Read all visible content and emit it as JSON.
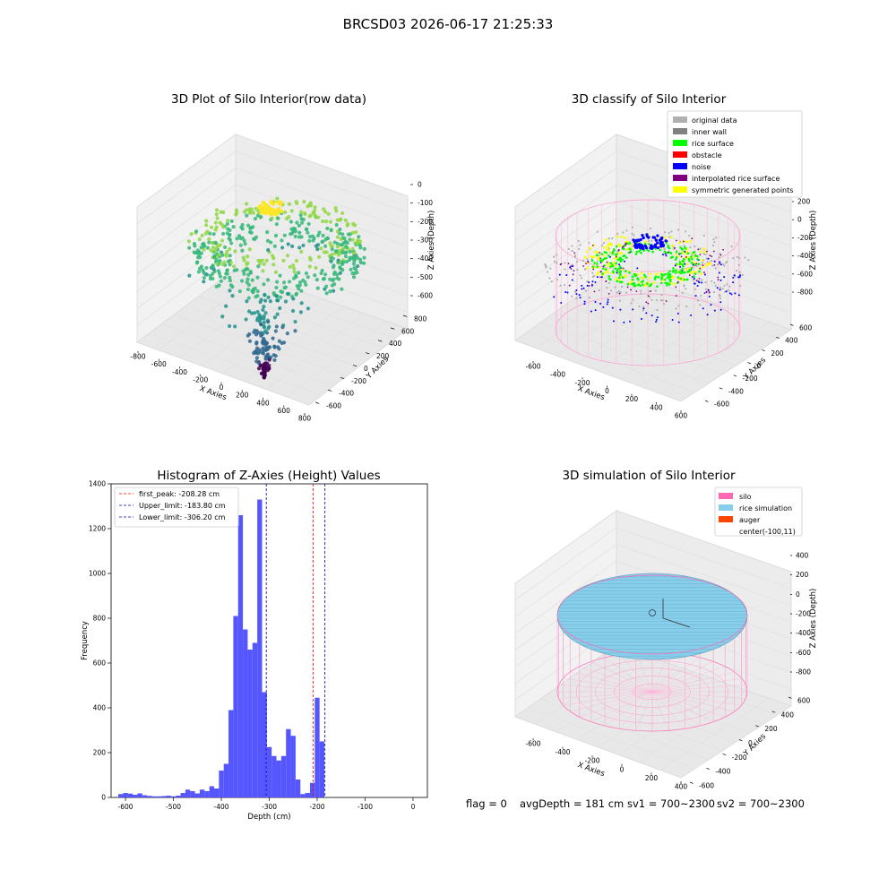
{
  "figure": {
    "suptitle": "BRCSD03 2026-06-17 21:25:33",
    "status": {
      "flag": "flag = 0",
      "avg_depth": "avgDepth = 181 cm",
      "sv1": "sv1 = 700~2300",
      "sv2": "sv2 = 700~2300"
    }
  },
  "chart_data": [
    {
      "type": "scatter",
      "id": "plot_raw",
      "title": "3D Plot of Silo Interior(row data)",
      "xlabel": "X Axies",
      "ylabel": "Y Axies",
      "zlabel": "Z Axies (Depth)",
      "xticks": [
        "-800",
        "-600",
        "-400",
        "-200",
        "0",
        "200",
        "400",
        "600",
        "800"
      ],
      "yticks": [
        "-600",
        "-400",
        "-200",
        "0",
        "200",
        "400",
        "600",
        "800"
      ],
      "zticks": [
        "0",
        "-100",
        "-200",
        "-300",
        "-400",
        "-500",
        "-600"
      ],
      "colormap": [
        "#440154",
        "#31688e",
        "#21918c",
        "#35b779",
        "#90d743",
        "#fde725"
      ],
      "z_range": [
        -620,
        0
      ]
    },
    {
      "type": "scatter",
      "id": "plot_classify",
      "title": "3D classify of Silo Interior",
      "xlabel": "X Axies",
      "ylabel": "Y Axies",
      "zlabel": "Z Axies (Depth)",
      "xticks": [
        "-600",
        "-400",
        "-200",
        "0",
        "200",
        "400",
        "600"
      ],
      "yticks": [
        "-600",
        "-400",
        "-200",
        "0",
        "200",
        "400",
        "600"
      ],
      "zticks": [
        "200",
        "0",
        "-200",
        "-400",
        "-600",
        "-800"
      ],
      "legend": [
        {
          "label": "original data",
          "color": "#b0b0b0"
        },
        {
          "label": "inner wall",
          "color": "#808080"
        },
        {
          "label": "rice surface",
          "color": "#00ff00"
        },
        {
          "label": "obstacle",
          "color": "#ff0000"
        },
        {
          "label": "noise",
          "color": "#0000ff"
        },
        {
          "label": "interpolated rice surface",
          "color": "#800080"
        },
        {
          "label": "symmetric generated points",
          "color": "#ffff00"
        }
      ],
      "legend_position": "top-right"
    },
    {
      "type": "bar",
      "id": "histogram",
      "title": "Histogram of Z-Axies (Height) Values",
      "xlabel": "Depth (cm)",
      "ylabel": "Frequency",
      "bar_color": "#4d4dff",
      "bin_edges_start": -615,
      "bin_width": 10,
      "values": [
        15,
        20,
        17,
        12,
        18,
        10,
        7,
        5,
        5,
        6,
        8,
        5,
        8,
        20,
        35,
        28,
        18,
        35,
        28,
        50,
        40,
        120,
        150,
        390,
        810,
        1260,
        750,
        660,
        690,
        1330,
        470,
        225,
        185,
        165,
        185,
        305,
        275,
        80,
        15,
        20,
        65,
        445,
        250
      ],
      "xlim": [
        -630,
        30
      ],
      "ylim": [
        0,
        1400
      ],
      "xticks": [
        -600,
        -500,
        -400,
        -300,
        -200,
        -100,
        0
      ],
      "yticks": [
        0,
        200,
        400,
        600,
        800,
        1000,
        1200,
        1400
      ],
      "lines": [
        {
          "label": "first_peak: -208.28 cm",
          "x": -208.28,
          "color": "#ff0000"
        },
        {
          "label": "Upper_limit: -183.80 cm",
          "x": -183.8,
          "color": "#0000aa"
        },
        {
          "label": "Lower_limit: -306.20 cm",
          "x": -306.2,
          "color": "#0000aa"
        }
      ],
      "legend_position": "top-left"
    },
    {
      "type": "surface",
      "id": "plot_sim",
      "title": "3D simulation of Silo Interior",
      "xlabel": "X Axies",
      "ylabel": "Y Axies",
      "zlabel": "Z Axies (Depth)",
      "xticks": [
        "-600",
        "-400",
        "-200",
        "0",
        "200",
        "400"
      ],
      "yticks": [
        "-600",
        "-400",
        "-200",
        "0",
        "200",
        "400",
        "600"
      ],
      "zticks": [
        "400",
        "200",
        "0",
        "-200",
        "-400",
        "-600",
        "-800"
      ],
      "legend": [
        {
          "label": "silo",
          "color": "#ff69b4"
        },
        {
          "label": "rice simulation",
          "color": "#87ceeb"
        },
        {
          "label": "auger",
          "color": "#ff4500"
        },
        {
          "label": "center(-100,11)",
          "color": ""
        }
      ],
      "legend_position": "top-right"
    }
  ]
}
